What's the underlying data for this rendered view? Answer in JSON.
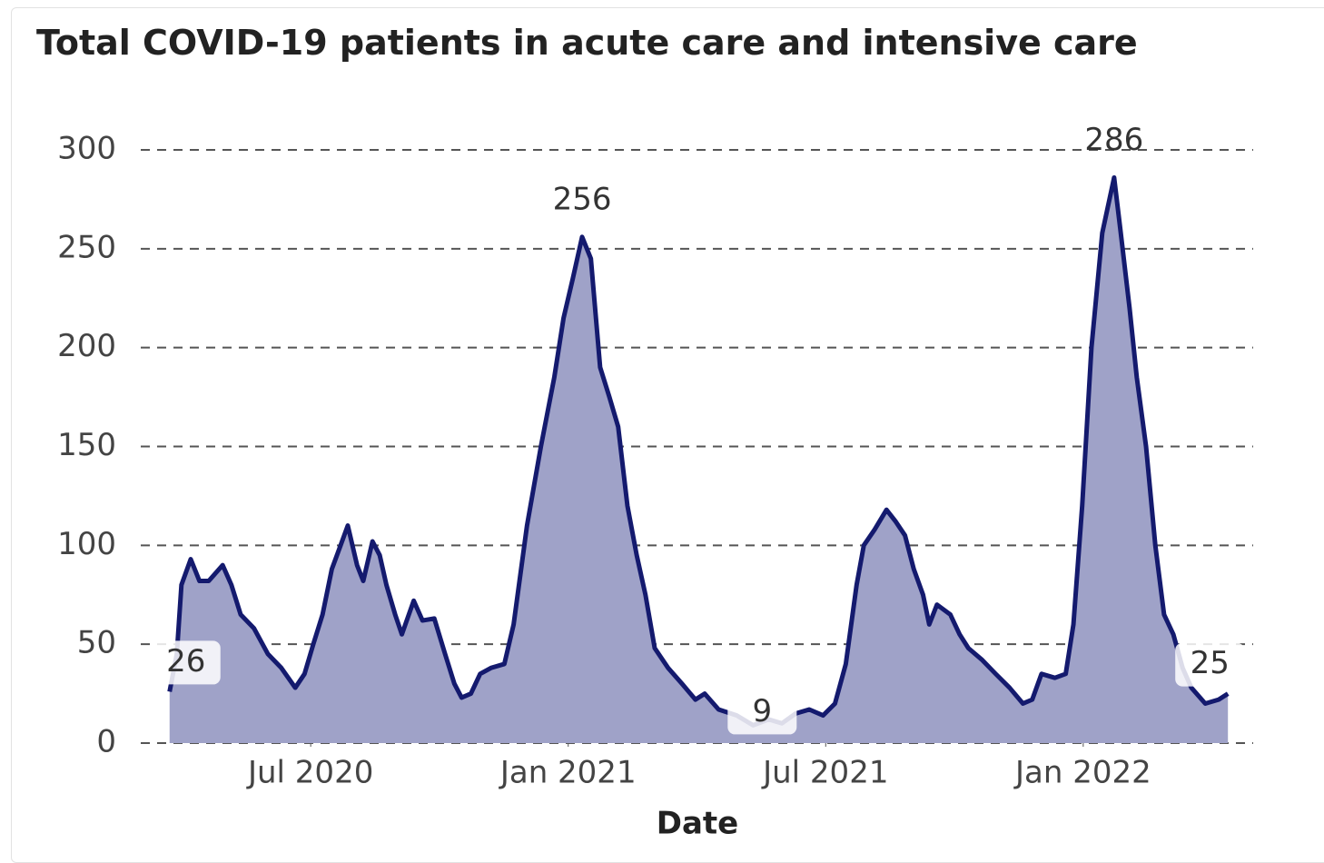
{
  "chart_data": {
    "type": "area",
    "title": "Total COVID-19 patients in acute care and intensive care",
    "x_label": "Date",
    "x": [
      2020.226,
      2020.24,
      2020.249,
      2020.267,
      2020.284,
      2020.302,
      2020.329,
      2020.346,
      2020.364,
      2020.39,
      2020.417,
      2020.443,
      2020.47,
      2020.488,
      2020.505,
      2020.523,
      2020.541,
      2020.558,
      2020.572,
      2020.59,
      2020.602,
      2020.62,
      2020.634,
      2020.647,
      2020.664,
      2020.677,
      2020.7,
      2020.717,
      2020.74,
      2020.761,
      2020.779,
      2020.793,
      2020.811,
      2020.829,
      2020.85,
      2020.876,
      2020.894,
      2020.92,
      2020.947,
      2020.973,
      2020.991,
      2021.009,
      2021.027,
      2021.044,
      2021.062,
      2021.08,
      2021.097,
      2021.115,
      2021.133,
      2021.15,
      2021.168,
      2021.194,
      2021.221,
      2021.247,
      2021.265,
      2021.292,
      2021.327,
      2021.359,
      2021.389,
      2021.415,
      2021.442,
      2021.468,
      2021.495,
      2021.518,
      2021.539,
      2021.56,
      2021.574,
      2021.595,
      2021.618,
      2021.636,
      2021.654,
      2021.671,
      2021.689,
      2021.701,
      2021.716,
      2021.742,
      2021.76,
      2021.777,
      2021.804,
      2021.83,
      2021.857,
      2021.883,
      2021.901,
      2021.919,
      2021.945,
      2021.966,
      2021.981,
      2021.998,
      2022.016,
      2022.037,
      2022.06,
      2022.072,
      2022.09,
      2022.104,
      2022.122,
      2022.14,
      2022.157,
      2022.175,
      2022.193,
      2022.21,
      2022.237,
      2022.263,
      2022.281
    ],
    "values": [
      26,
      45,
      80,
      93,
      82,
      82,
      90,
      80,
      65,
      58,
      45,
      38,
      28,
      35,
      50,
      65,
      88,
      100,
      110,
      90,
      82,
      102,
      95,
      80,
      65,
      55,
      72,
      62,
      63,
      45,
      30,
      23,
      25,
      35,
      38,
      40,
      60,
      110,
      150,
      185,
      215,
      235,
      256,
      245,
      190,
      175,
      160,
      120,
      95,
      75,
      48,
      38,
      30,
      22,
      25,
      17,
      14,
      9,
      12,
      10,
      15,
      17,
      14,
      20,
      40,
      80,
      100,
      108,
      118,
      112,
      105,
      88,
      75,
      60,
      70,
      65,
      55,
      48,
      42,
      35,
      28,
      20,
      22,
      35,
      33,
      35,
      60,
      120,
      200,
      258,
      286,
      260,
      220,
      185,
      150,
      100,
      65,
      55,
      38,
      28,
      20,
      22,
      25
    ],
    "color": "#141a6e",
    "fill_color": "#9fa2c8",
    "xlim": [
      2020.17,
      2022.33
    ],
    "xticks": [
      {
        "value": 2020.5,
        "label": "Jul 2020"
      },
      {
        "value": 2021.0,
        "label": "Jan 2021"
      },
      {
        "value": 2021.5,
        "label": "Jul 2021"
      },
      {
        "value": 2022.0,
        "label": "Jan 2022"
      }
    ],
    "ylim": [
      0,
      300
    ],
    "yticks": [
      0,
      50,
      100,
      150,
      200,
      250,
      300
    ],
    "grid": true
  }
}
